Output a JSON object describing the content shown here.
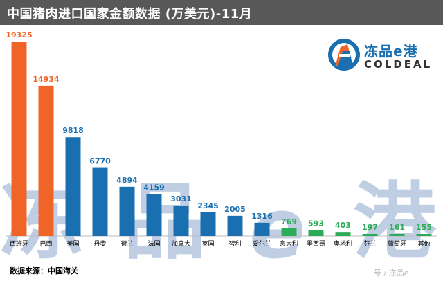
{
  "title": "中国猪肉进口国家金额数据 (万美元)-11月",
  "logo": {
    "cn": "冻品e港",
    "en": "COLDEAL",
    "icon": "port-logo-icon"
  },
  "source": "数据来源：中国海关",
  "watermark": {
    "chars": [
      "冻",
      "品",
      "e",
      "港"
    ],
    "bottom_text": "号 / 冻品e"
  },
  "colors": {
    "orange": "#f06428",
    "blue": "#1a6fb0",
    "green": "#2cab58",
    "title_bar": "#585858"
  },
  "chart_data": {
    "type": "bar",
    "title": "中国猪肉进口国家金额数据 (万美元)-11月",
    "categories": [
      "西班牙",
      "巴西",
      "美国",
      "丹麦",
      "荷兰",
      "法国",
      "加拿大",
      "英国",
      "智利",
      "爱尔兰",
      "意大利",
      "墨西哥",
      "奥地利",
      "芬兰",
      "葡萄牙",
      "其他"
    ],
    "values": [
      19325,
      14934,
      9818,
      6770,
      4894,
      4159,
      3031,
      2345,
      2005,
      1316,
      769,
      593,
      403,
      197,
      161,
      155
    ],
    "bar_colors": [
      "orange",
      "orange",
      "blue",
      "blue",
      "blue",
      "blue",
      "blue",
      "blue",
      "blue",
      "blue",
      "green",
      "green",
      "green",
      "green",
      "green",
      "green"
    ],
    "label_colors": [
      "orange",
      "orange",
      "blue",
      "blue",
      "blue",
      "blue",
      "blue",
      "blue",
      "blue",
      "blue",
      "green",
      "green",
      "green",
      "green",
      "green",
      "green"
    ],
    "ylim": [
      0,
      19325
    ],
    "grid": false,
    "legend": "none"
  }
}
